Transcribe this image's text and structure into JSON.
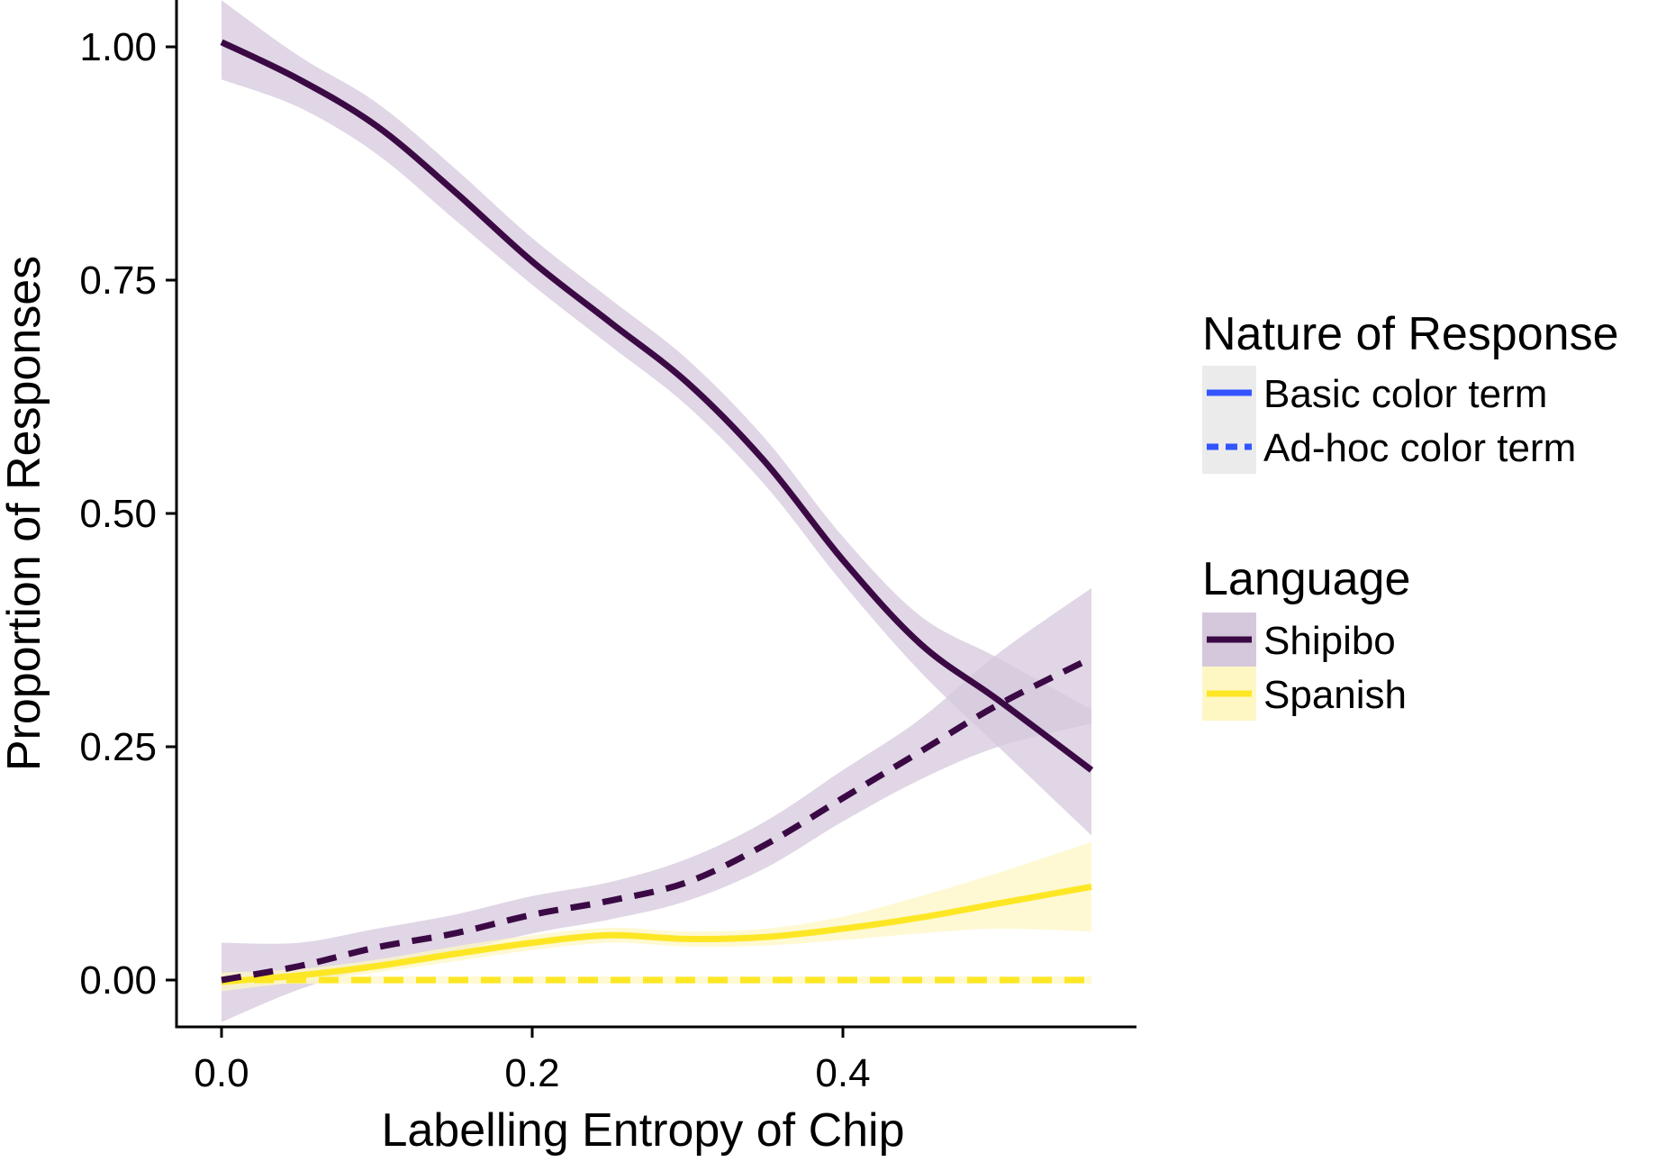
{
  "chart_data": {
    "type": "line",
    "title": "",
    "xlabel": "Labelling Entropy of Chip",
    "ylabel": "Proportion of Responses",
    "xlim": [
      -0.03,
      0.59
    ],
    "ylim": [
      -0.05,
      1.05
    ],
    "x_ticks": [
      0.0,
      0.2,
      0.4
    ],
    "x_tick_labels": [
      "0.0",
      "0.2",
      "0.4"
    ],
    "y_ticks": [
      0.0,
      0.25,
      0.5,
      0.75,
      1.0
    ],
    "y_tick_labels": [
      "0.00",
      "0.25",
      "0.50",
      "0.75",
      "1.00"
    ],
    "grid": false,
    "legend_placement": "right",
    "legends": [
      {
        "title": "Nature of Response",
        "entries": [
          {
            "label": "Basic color term",
            "linestyle": "solid",
            "color": "#3355FF"
          },
          {
            "label": "Ad-hoc color term",
            "linestyle": "dashed",
            "color": "#3355FF"
          }
        ]
      },
      {
        "title": "Language",
        "entries": [
          {
            "label": "Shipibo",
            "color": "#3B0A45",
            "fill": "#D6C8DC"
          },
          {
            "label": "Spanish",
            "color": "#FDE725",
            "fill": "#FEF7C4"
          }
        ]
      }
    ],
    "series": [
      {
        "name": "Shipibo",
        "response": "Basic color term",
        "linestyle": "solid",
        "color": "#3B0A45",
        "band_color": "#D6C8DC",
        "x": [
          0.0,
          0.05,
          0.1,
          0.15,
          0.2,
          0.25,
          0.3,
          0.35,
          0.4,
          0.45,
          0.5,
          0.56
        ],
        "y": [
          1.005,
          0.965,
          0.915,
          0.845,
          0.77,
          0.705,
          0.64,
          0.555,
          0.45,
          0.36,
          0.3,
          0.225
        ],
        "lower": [
          0.965,
          0.935,
          0.885,
          0.815,
          0.745,
          0.68,
          0.615,
          0.53,
          0.425,
          0.33,
          0.25,
          0.155
        ],
        "upper": [
          1.05,
          0.99,
          0.94,
          0.87,
          0.795,
          0.73,
          0.665,
          0.58,
          0.475,
          0.39,
          0.345,
          0.29
        ]
      },
      {
        "name": "Shipibo",
        "response": "Ad-hoc color term",
        "linestyle": "dashed",
        "color": "#3B0A45",
        "band_color": "#D6C8DC",
        "x": [
          0.0,
          0.05,
          0.1,
          0.15,
          0.2,
          0.25,
          0.3,
          0.35,
          0.4,
          0.45,
          0.5,
          0.56
        ],
        "y": [
          0.0,
          0.015,
          0.035,
          0.05,
          0.07,
          0.085,
          0.105,
          0.145,
          0.195,
          0.245,
          0.295,
          0.345
        ],
        "lower": [
          -0.045,
          -0.01,
          0.015,
          0.03,
          0.05,
          0.065,
          0.085,
          0.12,
          0.17,
          0.215,
          0.25,
          0.275
        ],
        "upper": [
          0.04,
          0.04,
          0.055,
          0.07,
          0.09,
          0.105,
          0.13,
          0.17,
          0.225,
          0.28,
          0.35,
          0.42
        ]
      },
      {
        "name": "Spanish",
        "response": "Basic color term",
        "linestyle": "solid",
        "color": "#FDE725",
        "band_color": "#FEF7C4",
        "x": [
          0.0,
          0.05,
          0.1,
          0.15,
          0.2,
          0.25,
          0.3,
          0.35,
          0.4,
          0.45,
          0.5,
          0.56
        ],
        "y": [
          -0.002,
          0.005,
          0.015,
          0.028,
          0.04,
          0.048,
          0.044,
          0.046,
          0.055,
          0.067,
          0.082,
          0.1
        ],
        "lower": [
          -0.012,
          -0.002,
          0.008,
          0.02,
          0.032,
          0.04,
          0.036,
          0.037,
          0.043,
          0.05,
          0.055,
          0.052
        ],
        "upper": [
          0.008,
          0.012,
          0.022,
          0.036,
          0.048,
          0.056,
          0.052,
          0.055,
          0.068,
          0.09,
          0.115,
          0.148
        ]
      },
      {
        "name": "Spanish",
        "response": "Ad-hoc color term",
        "linestyle": "dashed",
        "color": "#FDE725",
        "band_color": "#FEF7C4",
        "x": [
          0.0,
          0.05,
          0.1,
          0.15,
          0.2,
          0.25,
          0.3,
          0.35,
          0.4,
          0.45,
          0.5,
          0.56
        ],
        "y": [
          0.0,
          0.0,
          0.0,
          0.0,
          0.0,
          0.0,
          0.0,
          0.0,
          0.0,
          0.0,
          0.0,
          0.0
        ],
        "lower": [
          -0.004,
          -0.004,
          -0.004,
          -0.004,
          -0.004,
          -0.004,
          -0.004,
          -0.004,
          -0.004,
          -0.004,
          -0.004,
          -0.004
        ],
        "upper": [
          0.004,
          0.004,
          0.004,
          0.004,
          0.004,
          0.004,
          0.004,
          0.004,
          0.004,
          0.004,
          0.004,
          0.004
        ]
      }
    ]
  }
}
